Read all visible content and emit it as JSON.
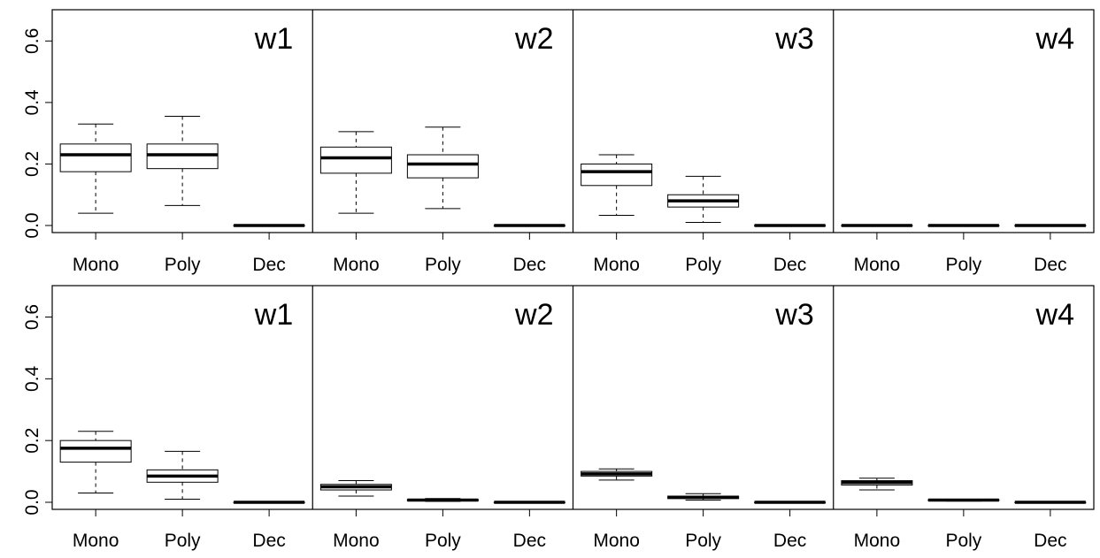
{
  "chart_data": [
    {
      "type": "boxplot",
      "row": "top",
      "ylim": [
        0,
        0.7
      ],
      "yticks": [
        "0.0",
        "0.2",
        "0.4",
        "0.6"
      ],
      "categories": [
        "Mono",
        "Poly",
        "Dec"
      ],
      "panels": [
        {
          "label": "w1",
          "boxes": [
            {
              "category": "Mono",
              "min": 0.04,
              "q1": 0.175,
              "median": 0.23,
              "q3": 0.265,
              "max": 0.33
            },
            {
              "category": "Poly",
              "min": 0.065,
              "q1": 0.185,
              "median": 0.23,
              "q3": 0.265,
              "max": 0.355
            },
            {
              "category": "Dec",
              "min": 0.0,
              "q1": 0.0,
              "median": 0.0,
              "q3": 0.0,
              "max": 0.0
            }
          ]
        },
        {
          "label": "w2",
          "boxes": [
            {
              "category": "Mono",
              "min": 0.04,
              "q1": 0.17,
              "median": 0.22,
              "q3": 0.255,
              "max": 0.305
            },
            {
              "category": "Poly",
              "min": 0.055,
              "q1": 0.155,
              "median": 0.2,
              "q3": 0.23,
              "max": 0.32
            },
            {
              "category": "Dec",
              "min": 0.0,
              "q1": 0.0,
              "median": 0.0,
              "q3": 0.0,
              "max": 0.0
            }
          ]
        },
        {
          "label": "w3",
          "boxes": [
            {
              "category": "Mono",
              "min": 0.033,
              "q1": 0.13,
              "median": 0.175,
              "q3": 0.2,
              "max": 0.23
            },
            {
              "category": "Poly",
              "min": 0.01,
              "q1": 0.06,
              "median": 0.08,
              "q3": 0.1,
              "max": 0.16
            },
            {
              "category": "Dec",
              "min": 0.0,
              "q1": 0.0,
              "median": 0.0,
              "q3": 0.0,
              "max": 0.0
            }
          ]
        },
        {
          "label": "w4",
          "boxes": [
            {
              "category": "Mono",
              "min": 0.0,
              "q1": 0.0,
              "median": 0.0,
              "q3": 0.0,
              "max": 0.0
            },
            {
              "category": "Poly",
              "min": 0.0,
              "q1": 0.0,
              "median": 0.0,
              "q3": 0.0,
              "max": 0.0
            },
            {
              "category": "Dec",
              "min": 0.0,
              "q1": 0.0,
              "median": 0.0,
              "q3": 0.0,
              "max": 0.0
            }
          ]
        }
      ]
    },
    {
      "type": "boxplot",
      "row": "bottom",
      "ylim": [
        0,
        0.7
      ],
      "yticks": [
        "0.0",
        "0.2",
        "0.4",
        "0.6"
      ],
      "categories": [
        "Mono",
        "Poly",
        "Dec"
      ],
      "panels": [
        {
          "label": "w1",
          "boxes": [
            {
              "category": "Mono",
              "min": 0.03,
              "q1": 0.13,
              "median": 0.175,
              "q3": 0.2,
              "max": 0.23
            },
            {
              "category": "Poly",
              "min": 0.01,
              "q1": 0.065,
              "median": 0.085,
              "q3": 0.105,
              "max": 0.165
            },
            {
              "category": "Dec",
              "min": 0.0,
              "q1": 0.0,
              "median": 0.0,
              "q3": 0.0,
              "max": 0.0
            }
          ]
        },
        {
          "label": "w2",
          "boxes": [
            {
              "category": "Mono",
              "min": 0.02,
              "q1": 0.04,
              "median": 0.05,
              "q3": 0.058,
              "max": 0.07
            },
            {
              "category": "Poly",
              "min": 0.003,
              "q1": 0.005,
              "median": 0.007,
              "q3": 0.009,
              "max": 0.012
            },
            {
              "category": "Dec",
              "min": 0.0,
              "q1": 0.0,
              "median": 0.0,
              "q3": 0.0,
              "max": 0.0
            }
          ]
        },
        {
          "label": "w3",
          "boxes": [
            {
              "category": "Mono",
              "min": 0.072,
              "q1": 0.085,
              "median": 0.092,
              "q3": 0.1,
              "max": 0.108
            },
            {
              "category": "Poly",
              "min": 0.007,
              "q1": 0.012,
              "median": 0.016,
              "q3": 0.02,
              "max": 0.028
            },
            {
              "category": "Dec",
              "min": 0.0,
              "q1": 0.0,
              "median": 0.0,
              "q3": 0.0,
              "max": 0.0
            }
          ]
        },
        {
          "label": "w4",
          "boxes": [
            {
              "category": "Mono",
              "min": 0.04,
              "q1": 0.056,
              "median": 0.064,
              "q3": 0.07,
              "max": 0.078
            },
            {
              "category": "Poly",
              "min": 0.004,
              "q1": 0.006,
              "median": 0.007,
              "q3": 0.008,
              "max": 0.01
            },
            {
              "category": "Dec",
              "min": 0.0,
              "q1": 0.0,
              "median": 0.0,
              "q3": 0.0,
              "max": 0.0
            }
          ]
        }
      ]
    }
  ]
}
